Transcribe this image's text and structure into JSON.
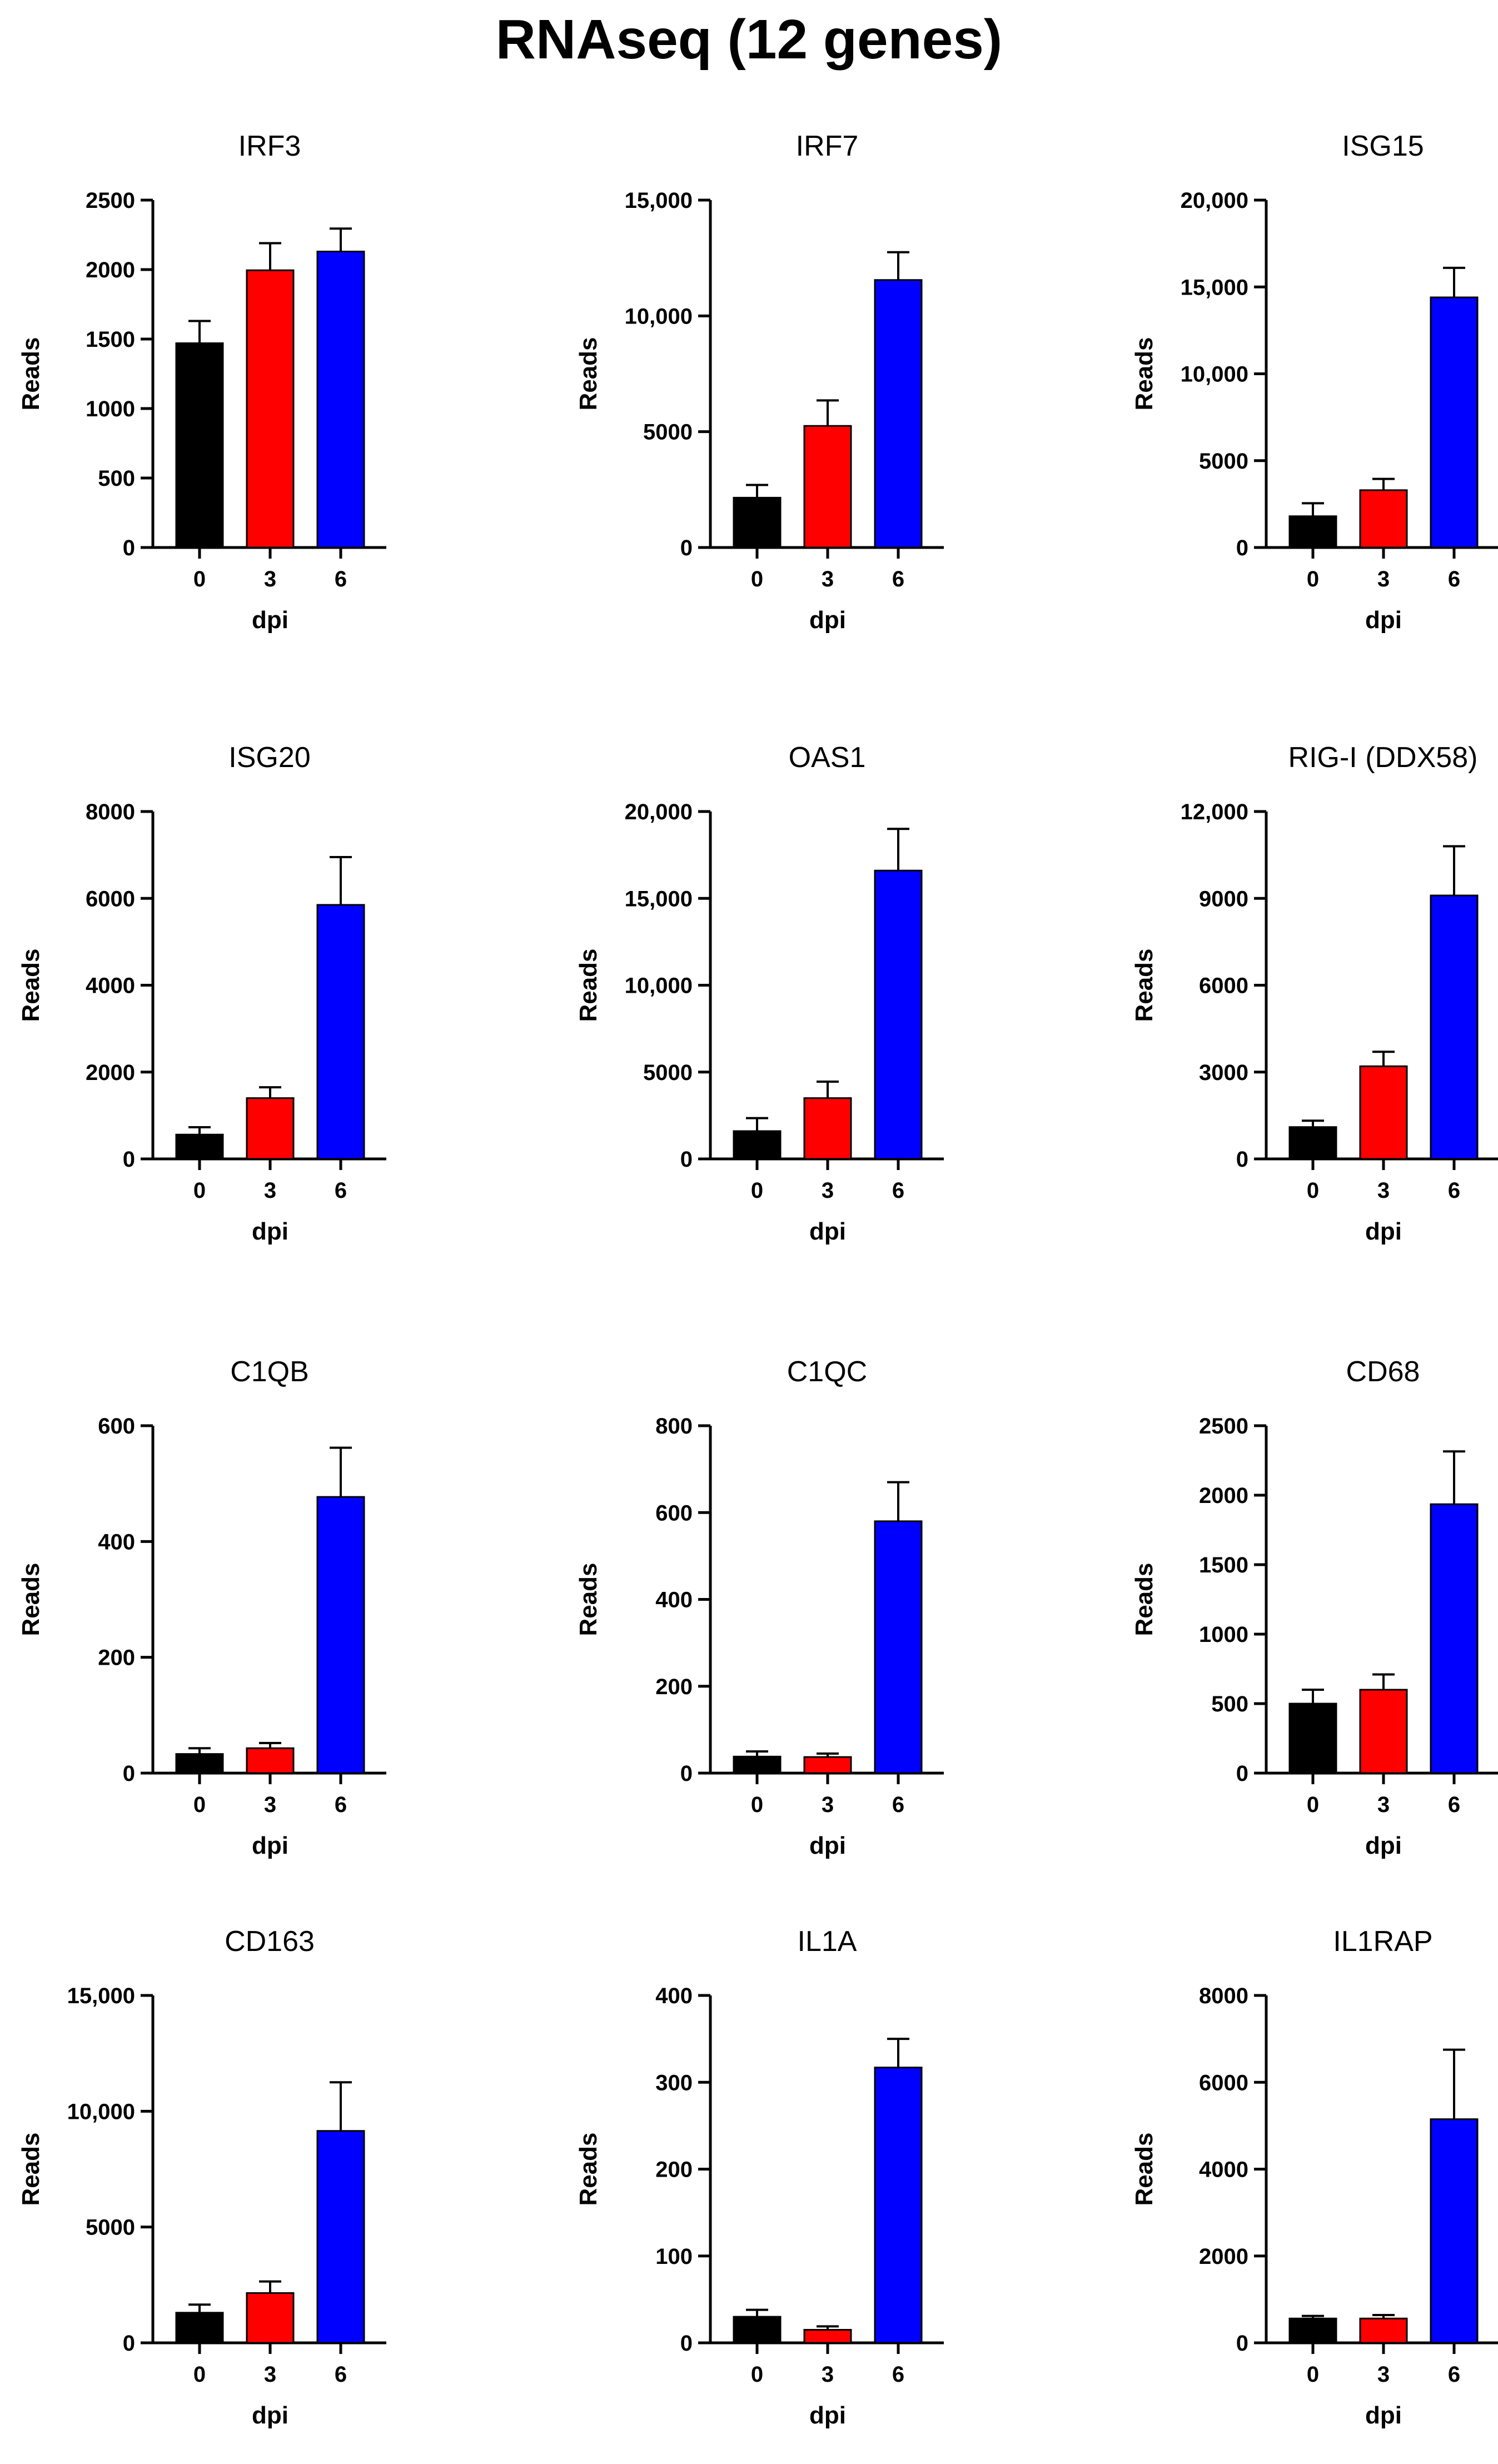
{
  "figure_title": "RNAseq (12 genes)",
  "colors": {
    "0": "#000000",
    "3": "#ff0000",
    "6": "#0000ff"
  },
  "chart_data": [
    {
      "type": "bar",
      "title": "IRF3",
      "xlabel": "dpi",
      "ylabel": "Reads",
      "categories": [
        "0",
        "3",
        "6"
      ],
      "values": [
        1470,
        1995,
        2130
      ],
      "errors": [
        160,
        195,
        165
      ],
      "ylim": [
        0,
        2500
      ],
      "ticks": [
        0,
        500,
        1000,
        1500,
        2000,
        2500
      ],
      "tick_labels": [
        "0",
        "500",
        "1000",
        "1500",
        "2000",
        "2500"
      ]
    },
    {
      "type": "bar",
      "title": "IRF7",
      "xlabel": "dpi",
      "ylabel": "Reads",
      "categories": [
        "0",
        "3",
        "6"
      ],
      "values": [
        2150,
        5250,
        11550
      ],
      "errors": [
        550,
        1100,
        1200
      ],
      "ylim": [
        0,
        15000
      ],
      "ticks": [
        0,
        5000,
        10000,
        15000
      ],
      "tick_labels": [
        "0",
        "5000",
        "10,000",
        "15,000"
      ]
    },
    {
      "type": "bar",
      "title": "ISG15",
      "xlabel": "dpi",
      "ylabel": "Reads",
      "categories": [
        "0",
        "3",
        "6"
      ],
      "values": [
        1800,
        3300,
        14400
      ],
      "errors": [
        750,
        650,
        1700
      ],
      "ylim": [
        0,
        20000
      ],
      "ticks": [
        0,
        5000,
        10000,
        15000,
        20000
      ],
      "tick_labels": [
        "0",
        "5000",
        "10,000",
        "15,000",
        "20,000"
      ]
    },
    {
      "type": "bar",
      "title": "ISG20",
      "xlabel": "dpi",
      "ylabel": "Reads",
      "categories": [
        "0",
        "3",
        "6"
      ],
      "values": [
        560,
        1400,
        5850
      ],
      "errors": [
        170,
        250,
        1100
      ],
      "ylim": [
        0,
        8000
      ],
      "ticks": [
        0,
        2000,
        4000,
        6000,
        8000
      ],
      "tick_labels": [
        "0",
        "2000",
        "4000",
        "6000",
        "8000"
      ]
    },
    {
      "type": "bar",
      "title": "OAS1",
      "xlabel": "dpi",
      "ylabel": "Reads",
      "categories": [
        "0",
        "3",
        "6"
      ],
      "values": [
        1600,
        3500,
        16600
      ],
      "errors": [
        750,
        950,
        2400
      ],
      "ylim": [
        0,
        20000
      ],
      "ticks": [
        0,
        5000,
        10000,
        15000,
        20000
      ],
      "tick_labels": [
        "0",
        "5000",
        "10,000",
        "15,000",
        "20,000"
      ]
    },
    {
      "type": "bar",
      "title": "RIG-I (DDX58)",
      "xlabel": "dpi",
      "ylabel": "Reads",
      "categories": [
        "0",
        "3",
        "6"
      ],
      "values": [
        1100,
        3200,
        9100
      ],
      "errors": [
        220,
        500,
        1700
      ],
      "ylim": [
        0,
        12000
      ],
      "ticks": [
        0,
        3000,
        6000,
        9000,
        12000
      ],
      "tick_labels": [
        "0",
        "3000",
        "6000",
        "9000",
        "12,000"
      ]
    },
    {
      "type": "bar",
      "title": "C1QB",
      "xlabel": "dpi",
      "ylabel": "Reads",
      "categories": [
        "0",
        "3",
        "6"
      ],
      "values": [
        33,
        43,
        477
      ],
      "errors": [
        10,
        9,
        85
      ],
      "ylim": [
        0,
        600
      ],
      "ticks": [
        0,
        200,
        400,
        600
      ],
      "tick_labels": [
        "0",
        "200",
        "400",
        "600"
      ]
    },
    {
      "type": "bar",
      "title": "C1QC",
      "xlabel": "dpi",
      "ylabel": "Reads",
      "categories": [
        "0",
        "3",
        "6"
      ],
      "values": [
        38,
        37,
        580
      ],
      "errors": [
        12,
        8,
        90
      ],
      "ylim": [
        0,
        800
      ],
      "ticks": [
        0,
        200,
        400,
        600,
        800
      ],
      "tick_labels": [
        "0",
        "200",
        "400",
        "600",
        "800"
      ]
    },
    {
      "type": "bar",
      "title": "CD68",
      "xlabel": "dpi",
      "ylabel": "Reads",
      "categories": [
        "0",
        "3",
        "6"
      ],
      "values": [
        500,
        600,
        1935
      ],
      "errors": [
        100,
        110,
        380
      ],
      "ylim": [
        0,
        2500
      ],
      "ticks": [
        0,
        500,
        1000,
        1500,
        2000,
        2500
      ],
      "tick_labels": [
        "0",
        "500",
        "1000",
        "1500",
        "2000",
        "2500"
      ]
    },
    {
      "type": "bar",
      "title": "CD163",
      "xlabel": "dpi",
      "ylabel": "Reads",
      "categories": [
        "0",
        "3",
        "6"
      ],
      "values": [
        1300,
        2150,
        9150
      ],
      "errors": [
        350,
        500,
        2100
      ],
      "ylim": [
        0,
        15000
      ],
      "ticks": [
        0,
        5000,
        10000,
        15000
      ],
      "tick_labels": [
        "0",
        "5000",
        "10,000",
        "15,000"
      ]
    },
    {
      "type": "bar",
      "title": "IL1A",
      "xlabel": "dpi",
      "ylabel": "Reads",
      "categories": [
        "0",
        "3",
        "6"
      ],
      "values": [
        30,
        15,
        317
      ],
      "errors": [
        8,
        4,
        33
      ],
      "ylim": [
        0,
        400
      ],
      "ticks": [
        0,
        100,
        200,
        300,
        400
      ],
      "tick_labels": [
        "0",
        "100",
        "200",
        "300",
        "400"
      ]
    },
    {
      "type": "bar",
      "title": "IL1RAP",
      "xlabel": "dpi",
      "ylabel": "Reads",
      "categories": [
        "0",
        "3",
        "6"
      ],
      "values": [
        560,
        560,
        5150
      ],
      "errors": [
        60,
        80,
        1600
      ],
      "ylim": [
        0,
        8000
      ],
      "ticks": [
        0,
        2000,
        4000,
        6000,
        8000
      ],
      "tick_labels": [
        "0",
        "2000",
        "4000",
        "6000",
        "8000"
      ]
    }
  ]
}
